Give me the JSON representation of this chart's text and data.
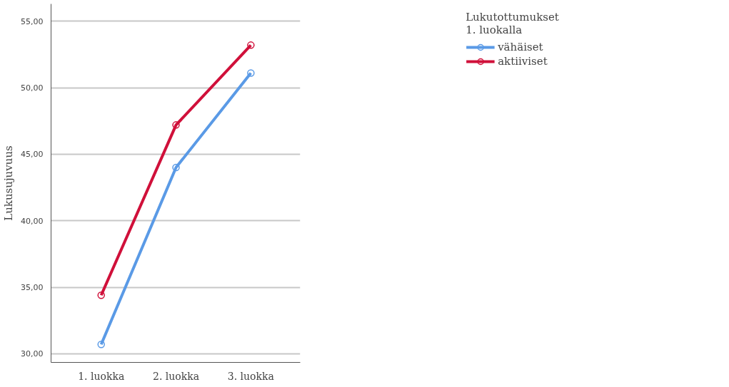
{
  "chart_data": {
    "type": "line",
    "ylabel": "Lukusujuvuus",
    "legend_title": "Lukutottumukset 1. luokalla",
    "categories": [
      "1. luokka",
      "2. luokka",
      "3. luokka"
    ],
    "series": [
      {
        "name": "vähäiset",
        "color": "#5a9ae6",
        "values": [
          30.7,
          44.0,
          51.1
        ]
      },
      {
        "name": "aktiiviset",
        "color": "#d0103a",
        "values": [
          34.4,
          47.2,
          53.2
        ]
      }
    ],
    "ylim": [
      29.35,
      56.3
    ],
    "yticks": [
      {
        "value": 30,
        "label": "30,00"
      },
      {
        "value": 35,
        "label": "35,00"
      },
      {
        "value": 40,
        "label": "40,00"
      },
      {
        "value": 45,
        "label": "45,00"
      },
      {
        "value": 50,
        "label": "50,00"
      },
      {
        "value": 55,
        "label": "55,00"
      }
    ],
    "grid": "y",
    "legend": "top right",
    "marker": "circle",
    "line_style": "solid"
  }
}
